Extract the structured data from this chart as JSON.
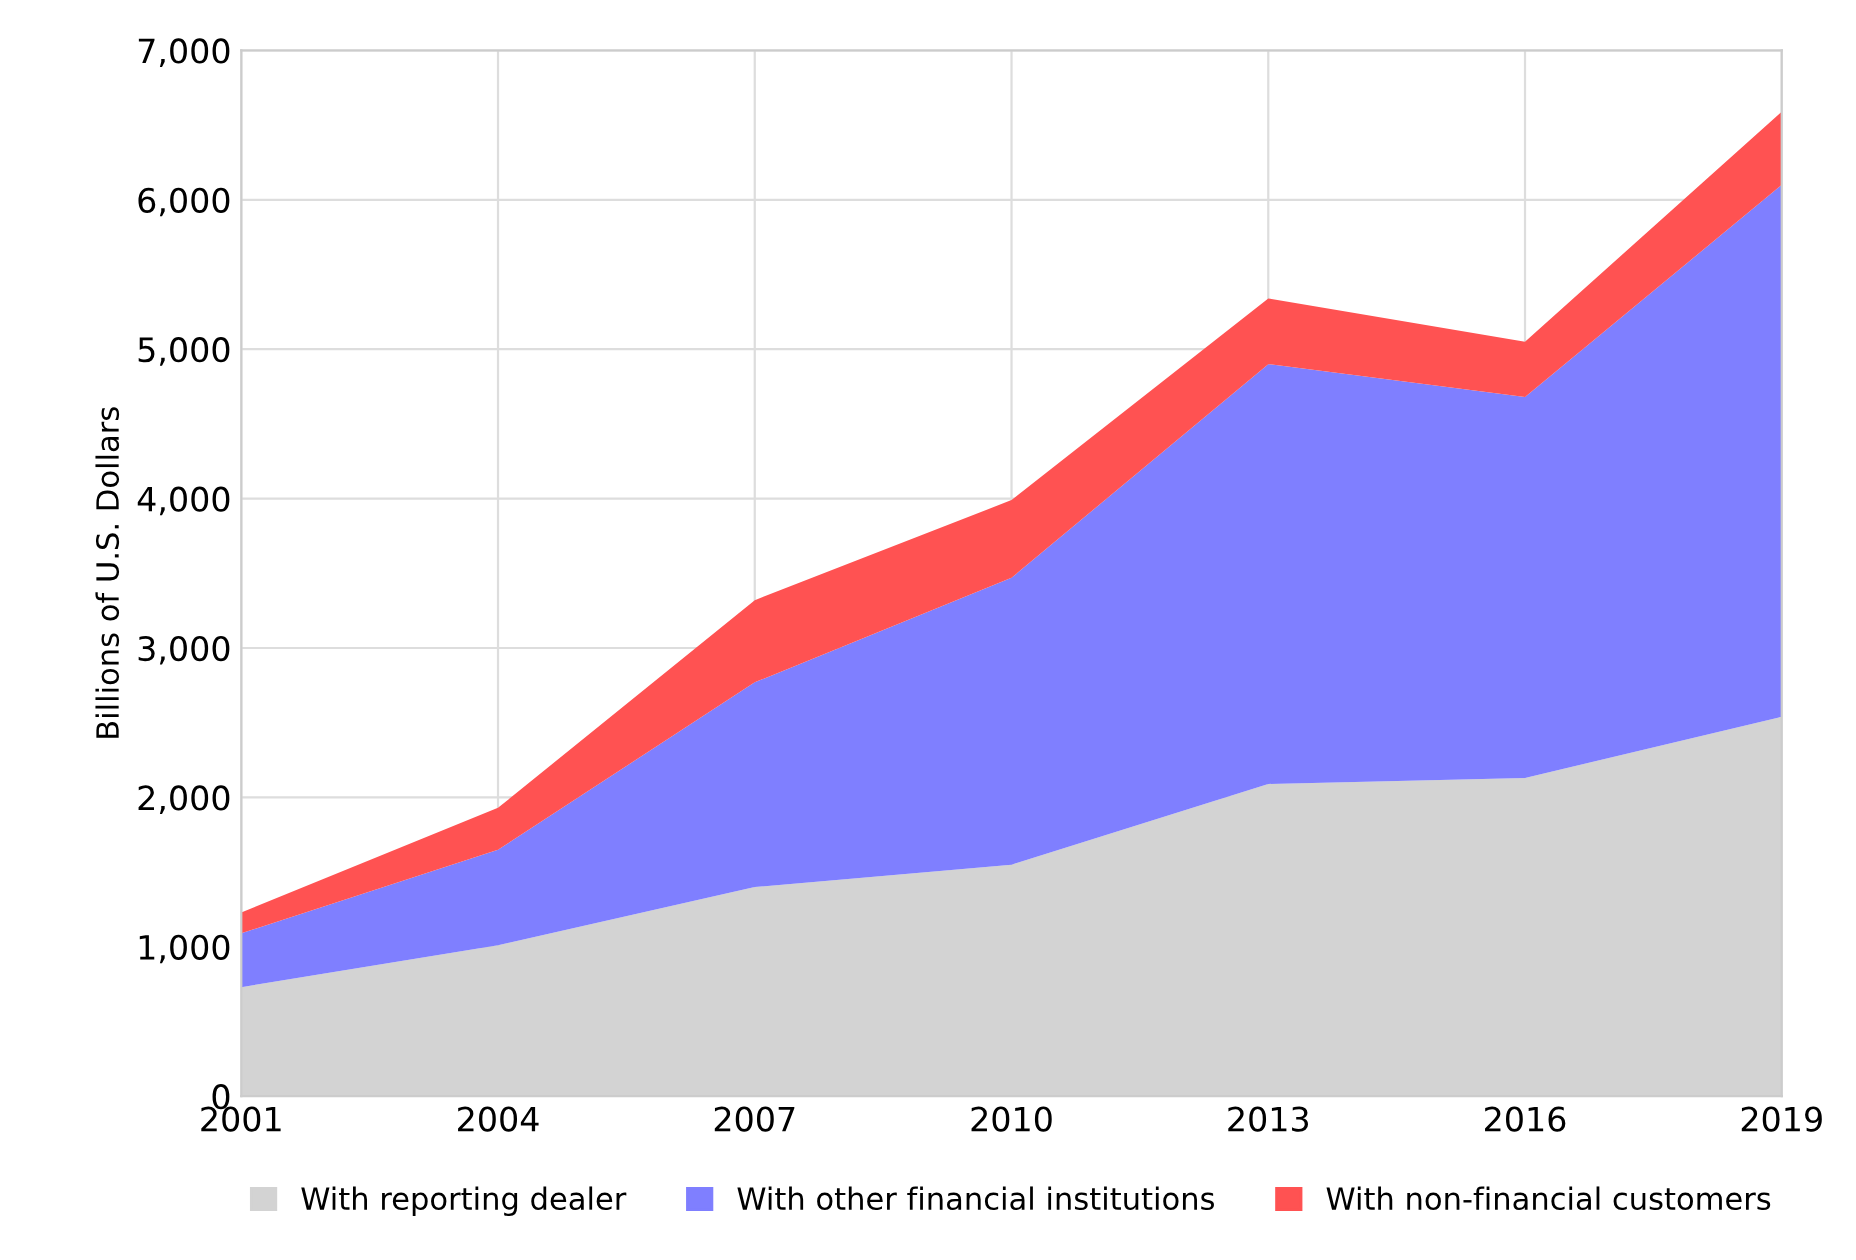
{
  "chart_data": {
    "type": "area",
    "stacked": true,
    "ylabel": "Billions of U.S. Dollars",
    "x": [
      2001,
      2004,
      2007,
      2010,
      2013,
      2016,
      2019
    ],
    "series": [
      {
        "name": "With reporting dealer",
        "color": "#d3d3d3",
        "values": [
          730,
          1010,
          1400,
          1550,
          2090,
          2130,
          2540
        ]
      },
      {
        "name": "With other financial institutions",
        "color": "#7f7fff",
        "values": [
          360,
          640,
          1370,
          1920,
          2810,
          2550,
          3560
        ]
      },
      {
        "name": "With non-financial customers",
        "color": "#ff5252",
        "values": [
          140,
          280,
          550,
          520,
          440,
          370,
          490
        ]
      }
    ],
    "xlim": [
      2001,
      2019
    ],
    "xticks": [
      2001,
      2004,
      2007,
      2010,
      2013,
      2016,
      2019
    ],
    "ylim": [
      0,
      7000
    ],
    "yticks": [
      {
        "value": 0,
        "label": "0"
      },
      {
        "value": 1000,
        "label": "1,000"
      },
      {
        "value": 2000,
        "label": "2,000"
      },
      {
        "value": 3000,
        "label": "3,000"
      },
      {
        "value": 4000,
        "label": "4,000"
      },
      {
        "value": 5000,
        "label": "5,000"
      },
      {
        "value": 6000,
        "label": "6,000"
      },
      {
        "value": 7000,
        "label": "7,000"
      }
    ],
    "grid": true,
    "legend": "bottom"
  }
}
